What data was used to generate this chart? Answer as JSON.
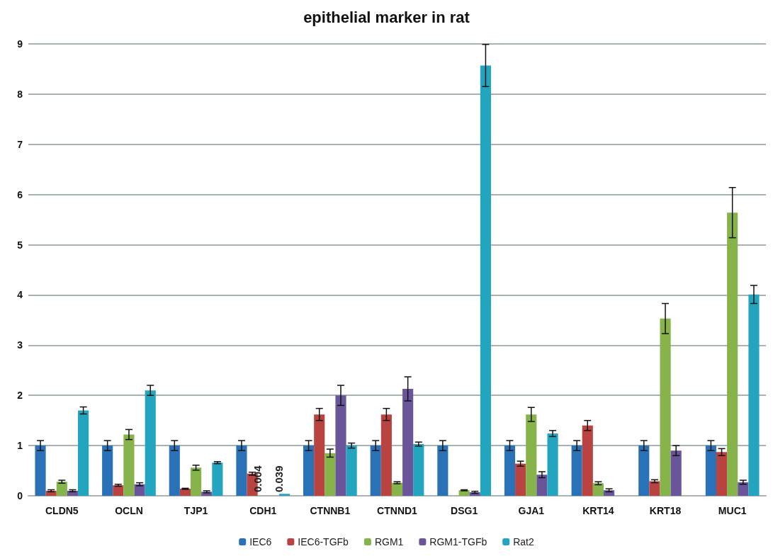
{
  "chart_data": {
    "type": "bar",
    "title": "epithelial marker in rat",
    "categories": [
      "CLDN5",
      "OCLN",
      "TJP1",
      "CDH1",
      "CTNNB1",
      "CTNND1",
      "DSG1",
      "GJA1",
      "KRT14",
      "KRT18",
      "MUC1"
    ],
    "series": [
      {
        "name": "IEC6",
        "color": "#2a72b8",
        "values": [
          1,
          1,
          1,
          1,
          1,
          1,
          1,
          1,
          1,
          1,
          1
        ],
        "errors": [
          0.1,
          0.1,
          0.1,
          0.1,
          0.1,
          0.1,
          0.1,
          0.1,
          0.1,
          0.1,
          0.1
        ]
      },
      {
        "name": "IEC6-TGFb",
        "color": "#b94340",
        "values": [
          0.1,
          0.21,
          0.14,
          0.44,
          1.62,
          1.62,
          null,
          0.64,
          1.4,
          0.29,
          0.87
        ],
        "errors": [
          0.02,
          0.02,
          0.01,
          0.03,
          0.12,
          0.12,
          null,
          0.05,
          0.1,
          0.03,
          0.07
        ]
      },
      {
        "name": "RGM1",
        "color": "#86b34a",
        "values": [
          0.28,
          1.22,
          0.56,
          0.004,
          0.85,
          0.26,
          0.11,
          1.62,
          0.25,
          3.53,
          5.64
        ],
        "errors": [
          0.03,
          0.1,
          0.05,
          null,
          0.08,
          0.02,
          0.01,
          0.14,
          0.03,
          0.3,
          0.5
        ],
        "value_labels": [
          null,
          null,
          null,
          "0.004",
          null,
          null,
          null,
          null,
          null,
          null,
          null
        ]
      },
      {
        "name": "RGM1-TGFb",
        "color": "#6a559b",
        "values": [
          0.1,
          0.23,
          0.08,
          null,
          2.0,
          2.13,
          0.07,
          0.42,
          0.11,
          0.9,
          0.27
        ],
        "errors": [
          0.02,
          0.03,
          0.02,
          null,
          0.2,
          0.24,
          0.02,
          0.06,
          0.03,
          0.1,
          0.04
        ]
      },
      {
        "name": "Rat2",
        "color": "#23a5c0",
        "values": [
          1.7,
          2.1,
          0.66,
          0.039,
          1.0,
          1.03,
          8.57,
          1.24,
          null,
          null,
          4.01
        ],
        "errors": [
          0.07,
          0.1,
          0.02,
          null,
          0.05,
          0.04,
          0.42,
          0.06,
          null,
          null,
          0.18
        ],
        "value_labels": [
          null,
          null,
          null,
          "0.039",
          null,
          null,
          null,
          null,
          null,
          null,
          null
        ]
      }
    ],
    "ylim": [
      0,
      9
    ],
    "yticks": [
      0,
      1,
      2,
      3,
      4,
      5,
      6,
      7,
      8,
      9
    ],
    "grid": "y",
    "legend": "bottom"
  }
}
